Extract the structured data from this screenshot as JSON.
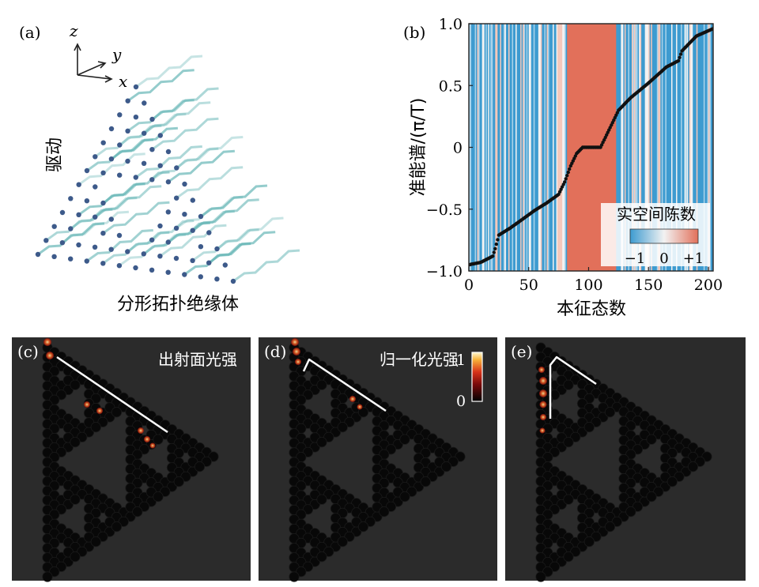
{
  "panel_a": {
    "label": "(a)",
    "axis_z": "z",
    "axis_y": "y",
    "axis_x": "x",
    "drive_label": "驱动",
    "caption": "分形拓扑绝缘体",
    "lattice_color": "#3d5a8a",
    "waveguide_color": "#5fb3b3"
  },
  "panel_b": {
    "label": "(b)",
    "colorbar": {
      "title": "实空间陈数",
      "ticks": [
        "−1",
        "0",
        "+1"
      ],
      "low_color": "#3d9bd0",
      "mid_color": "#f2f2f2",
      "high_color": "#e2705a"
    }
  },
  "panels_cde": [
    {
      "label": "(c)",
      "title": "出射面光强"
    },
    {
      "label": "(d)",
      "title": "归一化光强"
    },
    {
      "label": "(e)",
      "title": ""
    }
  ],
  "intensity_colorbar": {
    "max_label": "1",
    "min_label": "0"
  },
  "chart_data": {
    "type": "scatter",
    "title": "",
    "xlabel": "本征态数",
    "ylabel": "准能谱/(π/T)",
    "xlim": [
      0,
      204
    ],
    "ylim": [
      -1.0,
      1.0
    ],
    "x_ticks": [
      "0",
      "50",
      "100",
      "150",
      "200"
    ],
    "y_ticks": [
      "−1.0",
      "−0.5",
      "0",
      "0.5",
      "1.0"
    ],
    "background": "eigenstate-wise real-space Chern number (−1 blue, 0 white, +1 red)",
    "series": [
      {
        "name": "quasienergy",
        "points": [
          [
            0,
            -0.95
          ],
          [
            10,
            -0.93
          ],
          [
            20,
            -0.88
          ],
          [
            22,
            -0.82
          ],
          [
            25,
            -0.71
          ],
          [
            35,
            -0.65
          ],
          [
            45,
            -0.58
          ],
          [
            55,
            -0.51
          ],
          [
            65,
            -0.45
          ],
          [
            75,
            -0.38
          ],
          [
            80,
            -0.28
          ],
          [
            85,
            -0.15
          ],
          [
            90,
            -0.05
          ],
          [
            95,
            0.0
          ],
          [
            110,
            0.0
          ],
          [
            115,
            0.1
          ],
          [
            120,
            0.2
          ],
          [
            125,
            0.3
          ],
          [
            135,
            0.4
          ],
          [
            150,
            0.52
          ],
          [
            165,
            0.65
          ],
          [
            175,
            0.7
          ],
          [
            178,
            0.78
          ],
          [
            190,
            0.9
          ],
          [
            204,
            0.96
          ]
        ]
      }
    ]
  }
}
